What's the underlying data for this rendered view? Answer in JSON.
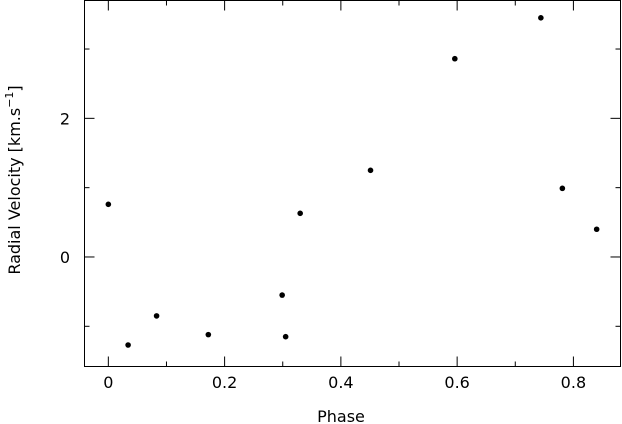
{
  "chart_data": {
    "type": "scatter",
    "xlabel": "Phase",
    "ylabel": [
      "Radial Velocity [km.s",
      "−1",
      "]"
    ],
    "x": [
      0,
      0.034,
      0.083,
      0.172,
      0.299,
      0.305,
      0.33,
      0.451,
      0.596,
      0.744,
      0.781,
      0.84
    ],
    "y": [
      0.76,
      -1.27,
      -0.85,
      -1.12,
      -0.55,
      -1.15,
      0.63,
      1.25,
      2.86,
      3.45,
      0.99,
      0.4
    ],
    "color": "#000000",
    "xlim": [
      -0.041,
      0.881
    ],
    "ylim": [
      -1.58,
      3.7
    ],
    "xticks": [
      0,
      0.2,
      0.4,
      0.6,
      0.8
    ],
    "yticks": [
      0,
      2
    ],
    "xminorticks": [
      0.1,
      0.3,
      0.5,
      0.7
    ],
    "yminorticks": [
      -1,
      1,
      3
    ]
  }
}
